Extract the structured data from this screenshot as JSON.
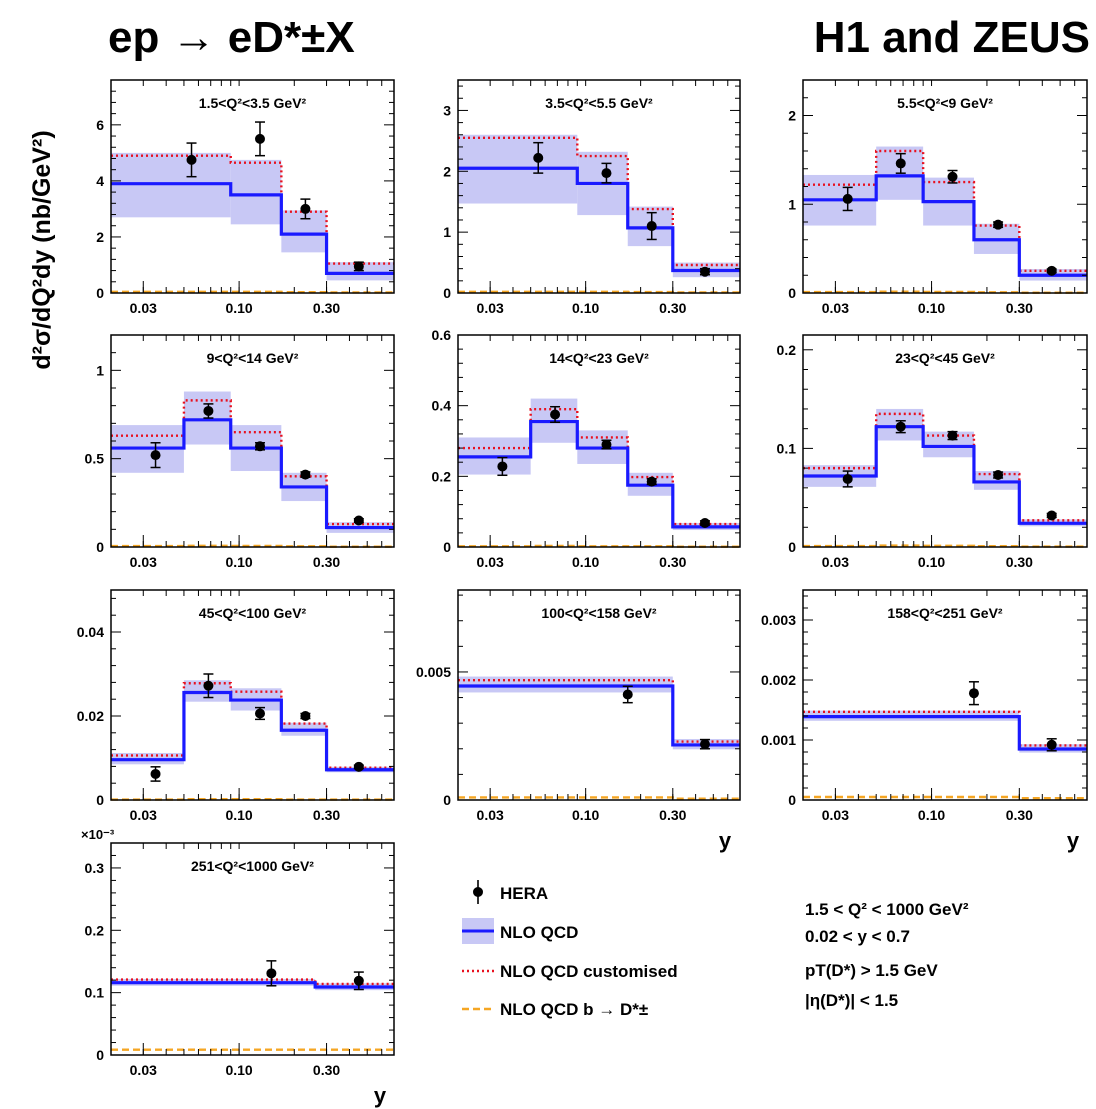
{
  "figure": {
    "title_left": "ep → eD*±X",
    "title_right": "H1 and ZEUS",
    "ylabel": "d²σ/dQ²dy (nb/GeV²)",
    "xlabel": "y",
    "legend": {
      "hera": "HERA",
      "nlo": "NLO QCD",
      "nlo_custom": "NLO QCD customised",
      "nlo_b": "NLO QCD b → D*±"
    },
    "cuts": [
      "1.5 < Q² < 1000 GeV²",
      "0.02 < y < 0.7",
      "pT(D*) > 1.5 GeV",
      "|η(D*)| < 1.5"
    ]
  },
  "colors": {
    "nlo": "#1a1aff",
    "band": "#c8c8f5",
    "custom": "#e8101e",
    "beauty": "#f5a623",
    "data": "#000000"
  },
  "chart_data": [
    {
      "type": "step",
      "label": "1.5<Q²<3.5 GeV²",
      "x_scale": "log",
      "xlim": [
        0.02,
        0.7
      ],
      "xticks": [
        "0.03",
        "0.10",
        "0.30"
      ],
      "ylim": [
        0,
        7.6
      ],
      "yticks": [
        "0",
        "2",
        "4",
        "6"
      ],
      "ytick_values": [
        0,
        2,
        4,
        6
      ],
      "multiplier": "",
      "bins": [
        0.02,
        0.09,
        0.17,
        0.3,
        0.7
      ],
      "nlo": [
        3.9,
        3.5,
        2.1,
        0.7
      ],
      "band_lo": [
        2.7,
        2.45,
        1.45,
        0.45
      ],
      "band_hi": [
        5.0,
        4.75,
        2.95,
        1.1
      ],
      "custom": [
        4.9,
        4.65,
        2.9,
        1.05
      ],
      "beauty": [
        0.04,
        0.04,
        0.03,
        0.02
      ],
      "data_x": [
        0.055,
        0.13,
        0.23,
        0.45
      ],
      "data_y": [
        4.75,
        5.5,
        3.0,
        0.95
      ],
      "data_err": [
        0.6,
        0.6,
        0.35,
        0.15
      ]
    },
    {
      "type": "step",
      "label": "3.5<Q²<5.5 GeV²",
      "x_scale": "log",
      "xlim": [
        0.02,
        0.7
      ],
      "xticks": [
        "0.03",
        "0.10",
        "0.30"
      ],
      "ylim": [
        0,
        3.5
      ],
      "yticks": [
        "0",
        "1",
        "2",
        "3"
      ],
      "ytick_values": [
        0,
        1,
        2,
        3
      ],
      "multiplier": "",
      "bins": [
        0.02,
        0.09,
        0.17,
        0.3,
        0.7
      ],
      "nlo": [
        2.05,
        1.8,
        1.07,
        0.37
      ],
      "band_lo": [
        1.47,
        1.28,
        0.77,
        0.26
      ],
      "band_hi": [
        2.6,
        2.32,
        1.42,
        0.5
      ],
      "custom": [
        2.55,
        2.25,
        1.38,
        0.46
      ],
      "beauty": [
        0.02,
        0.02,
        0.015,
        0.01
      ],
      "data_x": [
        0.055,
        0.13,
        0.23,
        0.45
      ],
      "data_y": [
        2.22,
        1.97,
        1.1,
        0.35
      ],
      "data_err": [
        0.25,
        0.16,
        0.22,
        0.05
      ]
    },
    {
      "type": "step",
      "label": "5.5<Q²<9 GeV²",
      "x_scale": "log",
      "xlim": [
        0.02,
        0.7
      ],
      "xticks": [
        "0.03",
        "0.10",
        "0.30"
      ],
      "ylim": [
        0,
        2.4
      ],
      "yticks": [
        "0",
        "1",
        "2"
      ],
      "ytick_values": [
        0,
        1,
        2
      ],
      "multiplier": "",
      "bins": [
        0.02,
        0.05,
        0.09,
        0.17,
        0.3,
        0.7
      ],
      "nlo": [
        1.05,
        1.32,
        1.03,
        0.6,
        0.2
      ],
      "band_lo": [
        0.76,
        1.05,
        0.76,
        0.44,
        0.14
      ],
      "band_hi": [
        1.33,
        1.65,
        1.3,
        0.78,
        0.27
      ],
      "custom": [
        1.22,
        1.6,
        1.25,
        0.76,
        0.25
      ],
      "beauty": [
        0.01,
        0.015,
        0.012,
        0.008,
        0.004
      ],
      "data_x": [
        0.035,
        0.068,
        0.13,
        0.23,
        0.45
      ],
      "data_y": [
        1.06,
        1.46,
        1.31,
        0.77,
        0.25
      ],
      "data_err": [
        0.13,
        0.11,
        0.07,
        0.03,
        0.02
      ]
    },
    {
      "type": "step",
      "label": "9<Q²<14 GeV²",
      "x_scale": "log",
      "xlim": [
        0.02,
        0.7
      ],
      "xticks": [
        "0.03",
        "0.10",
        "0.30"
      ],
      "ylim": [
        0,
        1.2
      ],
      "yticks": [
        "0",
        "0.5",
        "1"
      ],
      "ytick_values": [
        0,
        0.5,
        1
      ],
      "multiplier": "",
      "bins": [
        0.02,
        0.05,
        0.09,
        0.17,
        0.3,
        0.7
      ],
      "nlo": [
        0.56,
        0.72,
        0.56,
        0.34,
        0.11
      ],
      "band_lo": [
        0.42,
        0.58,
        0.43,
        0.26,
        0.08
      ],
      "band_hi": [
        0.69,
        0.88,
        0.69,
        0.42,
        0.14
      ],
      "custom": [
        0.63,
        0.83,
        0.65,
        0.4,
        0.13
      ],
      "beauty": [
        0.005,
        0.007,
        0.006,
        0.004,
        0.002
      ],
      "data_x": [
        0.035,
        0.068,
        0.13,
        0.23,
        0.45
      ],
      "data_y": [
        0.52,
        0.77,
        0.57,
        0.41,
        0.15
      ],
      "data_err": [
        0.07,
        0.04,
        0.02,
        0.015,
        0.01
      ]
    },
    {
      "type": "step",
      "label": "14<Q²<23 GeV²",
      "x_scale": "log",
      "xlim": [
        0.02,
        0.7
      ],
      "xticks": [
        "0.03",
        "0.10",
        "0.30"
      ],
      "ylim": [
        0,
        0.6
      ],
      "yticks": [
        "0",
        "0.2",
        "0.4",
        "0.6"
      ],
      "ytick_values": [
        0,
        0.2,
        0.4,
        0.6
      ],
      "multiplier": "",
      "bins": [
        0.02,
        0.05,
        0.09,
        0.17,
        0.3,
        0.7
      ],
      "nlo": [
        0.255,
        0.355,
        0.28,
        0.175,
        0.057
      ],
      "band_lo": [
        0.205,
        0.295,
        0.235,
        0.145,
        0.048
      ],
      "band_hi": [
        0.31,
        0.42,
        0.33,
        0.21,
        0.068
      ],
      "custom": [
        0.28,
        0.39,
        0.31,
        0.198,
        0.065
      ],
      "beauty": [
        0.002,
        0.003,
        0.002,
        0.002,
        0.001
      ],
      "data_x": [
        0.035,
        0.068,
        0.13,
        0.23,
        0.45
      ],
      "data_y": [
        0.228,
        0.375,
        0.29,
        0.185,
        0.068
      ],
      "data_err": [
        0.025,
        0.022,
        0.012,
        0.008,
        0.006
      ]
    },
    {
      "type": "step",
      "label": "23<Q²<45 GeV²",
      "x_scale": "log",
      "xlim": [
        0.02,
        0.7
      ],
      "xticks": [
        "0.03",
        "0.10",
        "0.30"
      ],
      "ylim": [
        0,
        0.215
      ],
      "yticks": [
        "0",
        "0.1",
        "0.2"
      ],
      "ytick_values": [
        0,
        0.1,
        0.2
      ],
      "multiplier": "",
      "bins": [
        0.02,
        0.05,
        0.09,
        0.17,
        0.3,
        0.7
      ],
      "nlo": [
        0.072,
        0.122,
        0.102,
        0.066,
        0.024
      ],
      "band_lo": [
        0.061,
        0.108,
        0.091,
        0.058,
        0.021
      ],
      "band_hi": [
        0.083,
        0.14,
        0.117,
        0.077,
        0.028
      ],
      "custom": [
        0.08,
        0.135,
        0.113,
        0.074,
        0.027
      ],
      "beauty": [
        0.001,
        0.0015,
        0.0012,
        0.0008,
        0.0004
      ],
      "data_x": [
        0.035,
        0.068,
        0.13,
        0.23,
        0.45
      ],
      "data_y": [
        0.069,
        0.122,
        0.113,
        0.073,
        0.032
      ],
      "data_err": [
        0.008,
        0.006,
        0.004,
        0.003,
        0.002
      ]
    },
    {
      "type": "step",
      "label": "45<Q²<100 GeV²",
      "x_scale": "log",
      "xlim": [
        0.02,
        0.7
      ],
      "xticks": [
        "0.03",
        "0.10",
        "0.30"
      ],
      "ylim": [
        0,
        0.05
      ],
      "yticks": [
        "0",
        "0.02",
        "0.04"
      ],
      "ytick_values": [
        0,
        0.02,
        0.04
      ],
      "multiplier": "",
      "bins": [
        0.02,
        0.05,
        0.09,
        0.17,
        0.3,
        0.7
      ],
      "nlo": [
        0.0096,
        0.0256,
        0.0238,
        0.0166,
        0.0072
      ],
      "band_lo": [
        0.0085,
        0.0234,
        0.0213,
        0.0153,
        0.0066
      ],
      "band_hi": [
        0.0112,
        0.0285,
        0.0266,
        0.0184,
        0.0079
      ],
      "custom": [
        0.0106,
        0.0278,
        0.0258,
        0.0182,
        0.0077
      ],
      "beauty": [
        0.0001,
        0.0002,
        0.0002,
        0.0001,
        0.0001
      ],
      "data_x": [
        0.035,
        0.068,
        0.13,
        0.23,
        0.45
      ],
      "data_y": [
        0.0062,
        0.0272,
        0.0206,
        0.02,
        0.0079
      ],
      "data_err": [
        0.0017,
        0.0028,
        0.0014,
        0.0006,
        0.0004
      ]
    },
    {
      "type": "step",
      "label": "100<Q²<158 GeV²",
      "x_scale": "log",
      "xlim": [
        0.02,
        0.7
      ],
      "xticks": [
        "0.03",
        "0.10",
        "0.30"
      ],
      "ylim": [
        0,
        0.0082
      ],
      "yticks": [
        "0",
        "0.005"
      ],
      "ytick_values": [
        0,
        0.005
      ],
      "multiplier": "",
      "bins": [
        0.02,
        0.3,
        0.7
      ],
      "nlo": [
        0.00445,
        0.00215
      ],
      "band_lo": [
        0.0042,
        0.00198
      ],
      "band_hi": [
        0.00482,
        0.00238
      ],
      "custom": [
        0.00468,
        0.00228
      ],
      "beauty": [
        0.0001,
        5e-05
      ],
      "data_x": [
        0.17,
        0.45
      ],
      "data_y": [
        0.00412,
        0.00218
      ],
      "data_err": [
        0.00032,
        0.00018
      ]
    },
    {
      "type": "step",
      "label": "158<Q²<251 GeV²",
      "x_scale": "log",
      "xlim": [
        0.02,
        0.7
      ],
      "xticks": [
        "0.03",
        "0.10",
        "0.30"
      ],
      "ylim": [
        0,
        0.0035
      ],
      "yticks": [
        "0",
        "0.001",
        "0.002",
        "0.003"
      ],
      "ytick_values": [
        0,
        0.001,
        0.002,
        0.003
      ],
      "multiplier": "",
      "bins": [
        0.02,
        0.3,
        0.7
      ],
      "nlo": [
        0.00139,
        0.00085
      ],
      "band_lo": [
        0.00132,
        0.00079
      ],
      "band_hi": [
        0.00149,
        0.00093
      ],
      "custom": [
        0.00147,
        0.00091
      ],
      "beauty": [
        5e-05,
        3e-05
      ],
      "data_x": [
        0.17,
        0.45
      ],
      "data_y": [
        0.00178,
        0.00092
      ],
      "data_err": [
        0.00019,
        0.0001
      ]
    },
    {
      "type": "step",
      "label": "251<Q²<1000 GeV²",
      "x_scale": "log",
      "xlim": [
        0.02,
        0.7
      ],
      "xticks": [
        "0.03",
        "0.10",
        "0.30"
      ],
      "ylim": [
        0,
        0.00034
      ],
      "yticks": [
        "0",
        "0.1",
        "0.2",
        "0.3"
      ],
      "ytick_values": [
        0,
        0.0001,
        0.0002,
        0.0003
      ],
      "multiplier": "×10⁻³",
      "bins": [
        0.02,
        0.26,
        0.7
      ],
      "nlo": [
        0.000116,
        0.000109
      ],
      "band_lo": [
        0.000111,
        0.000104
      ],
      "band_hi": [
        0.000122,
        0.000115
      ],
      "custom": [
        0.000121,
        0.000114
      ],
      "beauty": [
        8.5e-06,
        8.5e-06
      ],
      "data_x": [
        0.15,
        0.45
      ],
      "data_y": [
        0.000131,
        0.000119
      ],
      "data_err": [
        2e-05,
        1.4e-05
      ]
    }
  ]
}
